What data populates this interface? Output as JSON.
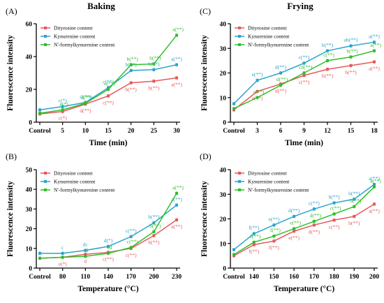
{
  "colors": {
    "red": "#e8585a",
    "blue": "#2aa4cc",
    "green": "#2fbf29"
  },
  "chart_data": [
    {
      "panel": "(A)",
      "type": "line",
      "title": "Baking",
      "xlabel": "Time (min)",
      "ylabel": "Fluorescence intensity",
      "categories": [
        "Control",
        "5",
        "10",
        "15",
        "20",
        "25",
        "30"
      ],
      "ylim": [
        0,
        60
      ],
      "yticks": [
        "0",
        "20",
        "40",
        "60"
      ],
      "legend": "top-left",
      "series": [
        {
          "name": "Dityrosine content",
          "color": "red",
          "values": [
            5,
            6.5,
            11,
            16,
            24,
            25,
            27
          ],
          "labels": [
            "",
            "c(*)",
            "d(**)",
            "c(**)",
            "b(**)",
            "b(**)",
            "a(**)"
          ]
        },
        {
          "name": "Kynurenine content",
          "color": "blue",
          "values": [
            7.5,
            9.5,
            12,
            21,
            31.5,
            32,
            35
          ],
          "labels": [
            "",
            "c(*)",
            "d(**)",
            "c(**)",
            "b(**)",
            "b(**)",
            "a(**)"
          ]
        },
        {
          "name": "N'-formylkynurenine content",
          "color": "green",
          "values": [
            5.5,
            7.5,
            11.5,
            20,
            35,
            35.5,
            53
          ],
          "labels": [
            "",
            "e(*)",
            "d(**)",
            "c(**)",
            "b(**)",
            "b(**)",
            "a(**)"
          ]
        }
      ]
    },
    {
      "panel": "(B)",
      "type": "line",
      "title": "",
      "xlabel": "Temperature (°C)",
      "ylabel": "Fluorescence intensity",
      "categories": [
        "Control",
        "80",
        "110",
        "140",
        "170",
        "200",
        "230"
      ],
      "ylim": [
        0,
        50
      ],
      "yticks": [
        "0",
        "10",
        "20",
        "30",
        "40",
        "50"
      ],
      "legend": "top-left",
      "series": [
        {
          "name": "Dityrosine content",
          "color": "red",
          "values": [
            5,
            5.5,
            7,
            8,
            10,
            16.5,
            24.5
          ],
          "labels": [
            "",
            "e(*)",
            "d",
            "c(**)",
            "c(**)",
            "b(**)",
            "a(**)"
          ]
        },
        {
          "name": "Kynurenine content",
          "color": "blue",
          "values": [
            7.5,
            7.5,
            9,
            11,
            16,
            23,
            32
          ],
          "labels": [
            "",
            "c",
            "dc",
            "d(*)",
            "c(**)",
            "b(**)",
            "a(**)"
          ]
        },
        {
          "name": "N'-formylkynurenine content",
          "color": "green",
          "values": [
            5,
            5.5,
            6,
            7.5,
            10.5,
            18.5,
            38
          ],
          "labels": [
            "",
            "",
            "d",
            "cd",
            "c(**)",
            "b(**)",
            "a(**)"
          ]
        }
      ]
    },
    {
      "panel": "(C)",
      "type": "line",
      "title": "Frying",
      "xlabel": "Time (min)",
      "ylabel": "Fluorescence intensity",
      "categories": [
        "Control",
        "3",
        "6",
        "9",
        "12",
        "15",
        "18"
      ],
      "ylim": [
        0,
        40
      ],
      "yticks": [
        "0",
        "10",
        "20",
        "30",
        "40"
      ],
      "legend": "top-left",
      "series": [
        {
          "name": "Dityrosine content",
          "color": "red",
          "values": [
            5,
            12.5,
            15.5,
            19,
            21.5,
            23,
            24.5
          ],
          "labels": [
            "",
            "e(**)",
            "d(**)",
            "c(**)",
            "b(**)",
            "b(**)",
            "a(**)"
          ]
        },
        {
          "name": "Kynurenine content",
          "color": "blue",
          "values": [
            7.5,
            17,
            20,
            24,
            29,
            31,
            32.5
          ],
          "labels": [
            "",
            "e(**)",
            "d(**)",
            "c(**)",
            "b(**)",
            "ab(**)",
            "a(**)"
          ]
        },
        {
          "name": "N'-formylkynurenine content",
          "color": "green",
          "values": [
            5.5,
            10,
            15,
            20,
            25,
            26.5,
            29
          ],
          "labels": [
            "",
            "e(**)",
            "d(**)",
            "cd(**)",
            "c(**)",
            "b(**)",
            "a(**)"
          ]
        }
      ]
    },
    {
      "panel": "(D)",
      "type": "line",
      "title": "",
      "xlabel": "Temperature (°C)",
      "ylabel": "Fluorescence intensity",
      "categories": [
        "Control",
        "140",
        "150",
        "160",
        "170",
        "180",
        "190",
        "200"
      ],
      "ylim": [
        0,
        40
      ],
      "yticks": [
        "0",
        "10",
        "20",
        "30",
        "40"
      ],
      "legend": "top-left",
      "series": [
        {
          "name": "Dityrosine content",
          "color": "red",
          "values": [
            5,
            9.5,
            11,
            15,
            17.5,
            19.5,
            21,
            26
          ],
          "labels": [
            "",
            "f(**)",
            "f(**)",
            "e(**)",
            "d(**)",
            "c(**)",
            "b(**)",
            "a(**)"
          ]
        },
        {
          "name": "Kynurenine content",
          "color": "blue",
          "values": [
            7.5,
            14,
            17.5,
            21,
            24,
            26.5,
            28,
            34
          ],
          "labels": [
            "",
            "f(**)",
            "e(**)",
            "d(**)",
            "c(**)",
            "b(**)",
            "b(**)",
            "a(**)"
          ]
        },
        {
          "name": "N'-formylkynurenine content",
          "color": "green",
          "values": [
            5.5,
            10.5,
            13,
            16,
            19,
            22,
            25,
            33
          ],
          "labels": [
            "",
            "f(**)",
            "f(**)",
            "e(**)",
            "d(**)",
            "c(**)",
            "b(**)",
            "a(**)"
          ]
        }
      ]
    }
  ]
}
